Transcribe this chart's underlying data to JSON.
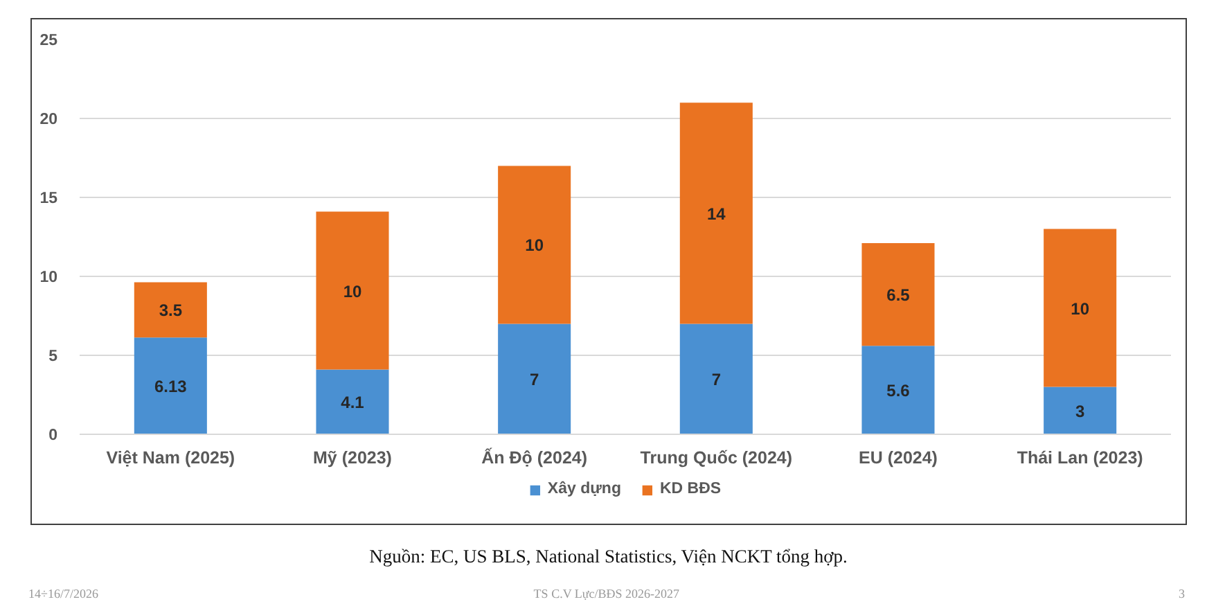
{
  "chart_data": {
    "type": "bar",
    "stacked": true,
    "categories": [
      "Việt Nam (2025)",
      "Mỹ (2023)",
      "Ấn Độ (2024)",
      "Trung Quốc (2024)",
      "EU (2024)",
      "Thái Lan (2023)"
    ],
    "series": [
      {
        "name": "Xây dựng",
        "color": "#4a90d2",
        "values": [
          6.13,
          4.1,
          7,
          7,
          5.6,
          3
        ]
      },
      {
        "name": "KD BĐS",
        "color": "#ea7321",
        "values": [
          3.5,
          10,
          10,
          14,
          6.5,
          10
        ]
      }
    ],
    "ylim": [
      0,
      25
    ],
    "yticks": [
      0,
      5,
      10,
      15,
      20,
      25
    ],
    "grid": "y",
    "legend": "bottom",
    "data_labels": true,
    "annotations": [
      "Nguồn: EC, US BLS, National Statistics, Viện NCKT tổng hợp.",
      "14÷16/7/2026",
      "TS C.V Lực/BĐS 2026-2027",
      "3"
    ]
  }
}
